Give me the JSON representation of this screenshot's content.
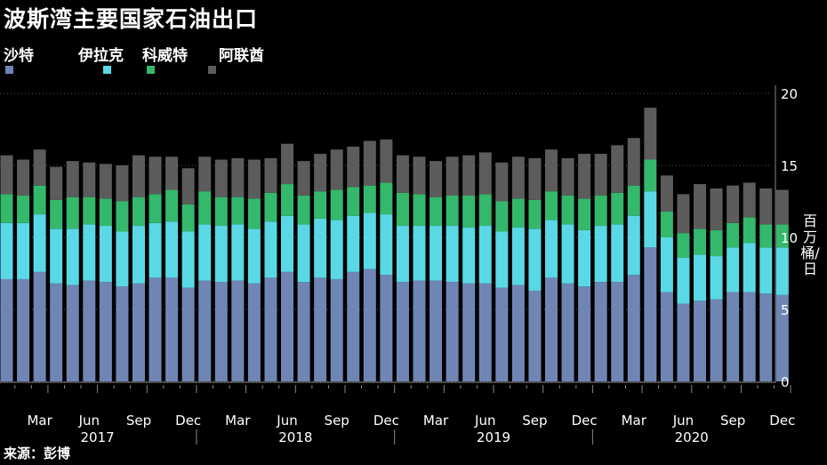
{
  "title": "波斯湾主要国家石油出口",
  "source": "来源：彭博",
  "chart_data": {
    "type": "bar",
    "stacked": true,
    "ylabel": "百万桶/日",
    "ylim": [
      0,
      20
    ],
    "yticks": [
      0,
      5,
      10,
      15,
      20
    ],
    "x_tick_labels": [
      "Mar",
      "Jun",
      "Sep",
      "Dec",
      "Mar",
      "Jun",
      "Sep",
      "Dec",
      "Mar",
      "Jun",
      "Sep",
      "Dec",
      "Mar",
      "Jun",
      "Sep",
      "Dec"
    ],
    "year_labels": [
      "2017",
      "2018",
      "2019",
      "2020"
    ],
    "categories": [
      "2017-01",
      "2017-02",
      "2017-03",
      "2017-04",
      "2017-05",
      "2017-06",
      "2017-07",
      "2017-08",
      "2017-09",
      "2017-10",
      "2017-11",
      "2017-12",
      "2018-01",
      "2018-02",
      "2018-03",
      "2018-04",
      "2018-05",
      "2018-06",
      "2018-07",
      "2018-08",
      "2018-09",
      "2018-10",
      "2018-11",
      "2018-12",
      "2019-01",
      "2019-02",
      "2019-03",
      "2019-04",
      "2019-05",
      "2019-06",
      "2019-07",
      "2019-08",
      "2019-09",
      "2019-10",
      "2019-11",
      "2019-12",
      "2020-01",
      "2020-02",
      "2020-03",
      "2020-04",
      "2020-05",
      "2020-06",
      "2020-07",
      "2020-08",
      "2020-09",
      "2020-10",
      "2020-11",
      "2020-12"
    ],
    "series": [
      {
        "name": "沙特",
        "color": "#6f86b5",
        "values": [
          7.1,
          7.1,
          7.6,
          6.8,
          6.7,
          7.0,
          6.9,
          6.6,
          6.8,
          7.2,
          7.2,
          6.5,
          7.0,
          6.9,
          7.0,
          6.8,
          7.2,
          7.6,
          6.9,
          7.2,
          7.1,
          7.6,
          7.8,
          7.4,
          6.9,
          7.0,
          7.0,
          6.9,
          6.8,
          6.8,
          6.5,
          6.7,
          6.3,
          7.2,
          6.8,
          6.6,
          6.9,
          6.9,
          7.4,
          9.3,
          6.2,
          5.4,
          5.6,
          5.7,
          6.2,
          6.2,
          6.1,
          6.0
        ]
      },
      {
        "name": "伊拉克",
        "color": "#5ad8e6",
        "values": [
          3.9,
          3.9,
          4.0,
          3.8,
          3.9,
          3.9,
          3.9,
          3.8,
          4.0,
          3.8,
          3.9,
          3.9,
          3.9,
          3.9,
          3.9,
          3.8,
          3.9,
          3.9,
          4.0,
          4.1,
          4.1,
          3.9,
          3.9,
          4.2,
          3.9,
          3.8,
          3.8,
          3.9,
          3.9,
          4.0,
          3.9,
          4.0,
          4.3,
          4.0,
          4.1,
          3.9,
          3.9,
          4.0,
          4.1,
          3.9,
          3.8,
          3.2,
          3.2,
          3.0,
          3.1,
          3.4,
          3.2,
          3.3
        ]
      },
      {
        "name": "科威特",
        "color": "#34b86b",
        "values": [
          2.0,
          1.9,
          2.0,
          2.0,
          2.2,
          1.9,
          1.9,
          2.1,
          2.0,
          2.0,
          2.2,
          1.9,
          2.3,
          2.0,
          1.9,
          2.1,
          2.0,
          2.2,
          2.0,
          1.9,
          2.1,
          2.0,
          1.9,
          2.2,
          2.3,
          2.2,
          2.0,
          2.1,
          2.2,
          2.2,
          2.1,
          2.0,
          2.0,
          2.0,
          2.0,
          2.2,
          2.1,
          2.2,
          2.1,
          2.2,
          1.8,
          1.7,
          1.8,
          1.8,
          1.7,
          1.8,
          1.6,
          1.6
        ]
      },
      {
        "name": "阿联酋",
        "color": "#5c5c5c",
        "values": [
          2.7,
          2.5,
          2.5,
          2.3,
          2.5,
          2.4,
          2.4,
          2.5,
          2.9,
          2.6,
          2.3,
          2.5,
          2.4,
          2.6,
          2.7,
          2.7,
          2.4,
          2.8,
          2.4,
          2.6,
          2.8,
          2.8,
          3.1,
          3.0,
          2.6,
          2.6,
          2.5,
          2.7,
          2.8,
          2.9,
          2.7,
          2.9,
          2.9,
          2.9,
          2.6,
          3.1,
          2.9,
          3.3,
          3.3,
          3.6,
          2.5,
          2.7,
          3.1,
          2.9,
          2.6,
          2.4,
          2.5,
          2.4
        ]
      }
    ]
  }
}
